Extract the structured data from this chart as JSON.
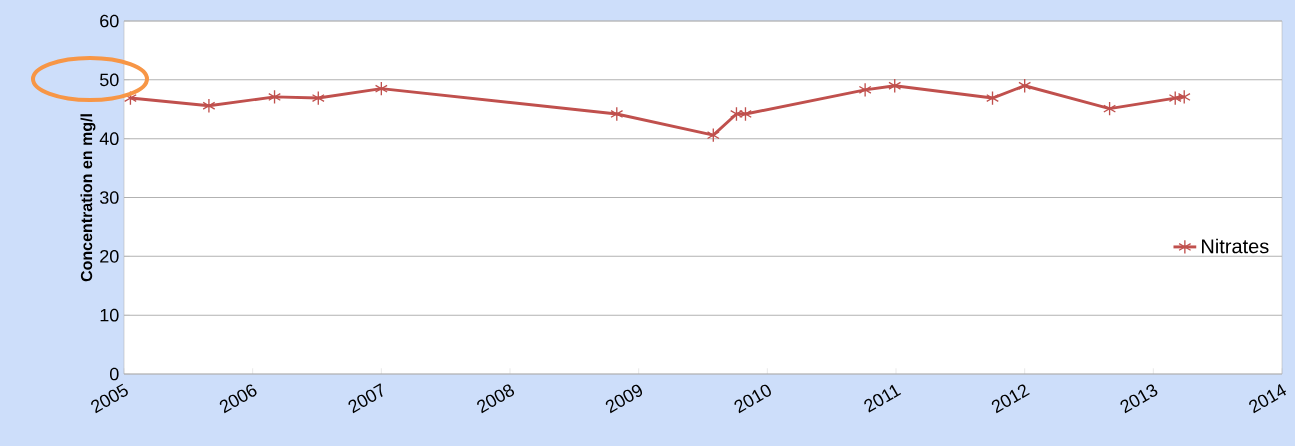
{
  "chart_data": {
    "type": "line",
    "ylabel": "Concentration en mg/l",
    "x": [
      2005.05,
      2005.66,
      2006.17,
      2006.51,
      2007.0,
      2008.83,
      2009.58,
      2009.76,
      2009.83,
      2010.76,
      2010.99,
      2011.75,
      2012.0,
      2012.66,
      2013.17,
      2013.24
    ],
    "series": [
      {
        "name": "Nitrates",
        "color": "#c0504d",
        "values": [
          46.9,
          45.6,
          47.1,
          46.9,
          48.5,
          44.2,
          40.6,
          44.2,
          44.2,
          48.3,
          49.0,
          46.9,
          49.0,
          45.1,
          46.9,
          47.1
        ]
      }
    ],
    "xlim": [
      2005,
      2014
    ],
    "xticks": [
      2005,
      2006,
      2007,
      2008,
      2009,
      2010,
      2011,
      2012,
      2013,
      2014
    ],
    "ylim": [
      0,
      60
    ],
    "yticks": [
      0,
      10,
      20,
      30,
      40,
      50,
      60
    ],
    "grid": "y",
    "legend": "right",
    "marker": "cross",
    "line_style": "solid"
  }
}
